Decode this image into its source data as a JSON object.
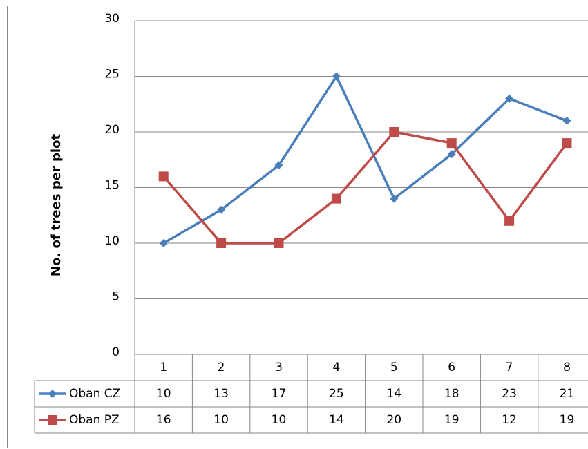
{
  "chart_data": {
    "type": "line",
    "y_label": "No. of trees per plot",
    "categories": [
      "1",
      "2",
      "3",
      "4",
      "5",
      "6",
      "7",
      "8"
    ],
    "series": [
      {
        "name": "Oban CZ",
        "color": "#4a7ebb",
        "marker": "diamond",
        "values": [
          10,
          13,
          17,
          25,
          14,
          18,
          23,
          21
        ]
      },
      {
        "name": "Oban PZ",
        "color": "#be4b48",
        "marker": "square",
        "values": [
          16,
          10,
          10,
          14,
          20,
          19,
          12,
          19
        ]
      }
    ],
    "ylim": [
      0,
      30
    ],
    "yticks": [
      0,
      5,
      10,
      15,
      20,
      25,
      30
    ],
    "grid": true,
    "data_table": true
  }
}
